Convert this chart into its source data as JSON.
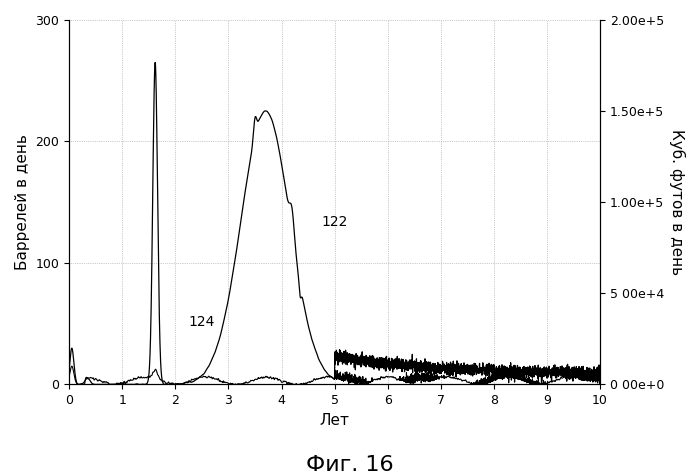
{
  "title": "Фиг. 16",
  "xlabel": "Лет",
  "ylabel_left": "Баррелей в день",
  "ylabel_right": "Куб. футов в день",
  "xlim": [
    0,
    10
  ],
  "ylim_left": [
    0,
    300
  ],
  "ylim_right": [
    0,
    200000
  ],
  "label_122": "122",
  "label_124": "124",
  "background_color": "#ffffff",
  "line_color": "#000000",
  "grid_color": "#999999",
  "title_fontsize": 16,
  "axis_fontsize": 11,
  "tick_fontsize": 9,
  "yticks_left": [
    0,
    100,
    200,
    300
  ],
  "yticks_right": [
    0,
    50000,
    100000,
    150000,
    200000
  ],
  "ytick_labels_right": [
    "0 00e+0",
    "5 00e+4",
    "1.00e+5",
    "1.50e+5",
    "2.00e+5"
  ],
  "xticks": [
    0,
    1,
    2,
    3,
    4,
    5,
    6,
    7,
    8,
    9,
    10
  ]
}
